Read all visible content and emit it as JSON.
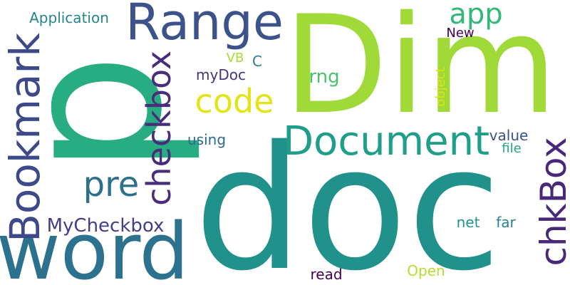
{
  "words": [
    {
      "text": "p",
      "color": "#27ad81"
    },
    {
      "text": "Dim",
      "color": "#a0da39"
    },
    {
      "text": "doc",
      "color": "#21918c"
    },
    {
      "text": "word",
      "color": "#2c728e"
    },
    {
      "text": "Range",
      "color": "#3b528b"
    },
    {
      "text": "Bookmark",
      "color": "#3e4989"
    },
    {
      "text": "checkbox",
      "color": "#472d7b"
    },
    {
      "text": "Document",
      "color": "#1f9e89"
    },
    {
      "text": "chkBox",
      "color": "#482878"
    },
    {
      "text": "code",
      "color": "#e2e418"
    },
    {
      "text": "pre",
      "color": "#2d708e"
    },
    {
      "text": "app",
      "color": "#35b779"
    },
    {
      "text": "MyCheckbox",
      "color": "#433e85"
    },
    {
      "text": "Application",
      "color": "#25858e"
    },
    {
      "text": "rng",
      "color": "#4ac16d"
    },
    {
      "text": "myDoc",
      "color": "#46337e"
    },
    {
      "text": "New",
      "color": "#440154"
    },
    {
      "text": "VB",
      "color": "#a8db34"
    },
    {
      "text": "C",
      "color": "#277f8e"
    },
    {
      "text": "object",
      "color": "#dde318"
    },
    {
      "text": "using",
      "color": "#31688e"
    },
    {
      "text": "value",
      "color": "#3b518b"
    },
    {
      "text": "file",
      "color": "#21a685"
    },
    {
      "text": "net",
      "color": "#1f958b"
    },
    {
      "text": "far",
      "color": "#26828e"
    },
    {
      "text": "read",
      "color": "#440154"
    },
    {
      "text": "Open",
      "color": "#b5de2b"
    }
  ]
}
